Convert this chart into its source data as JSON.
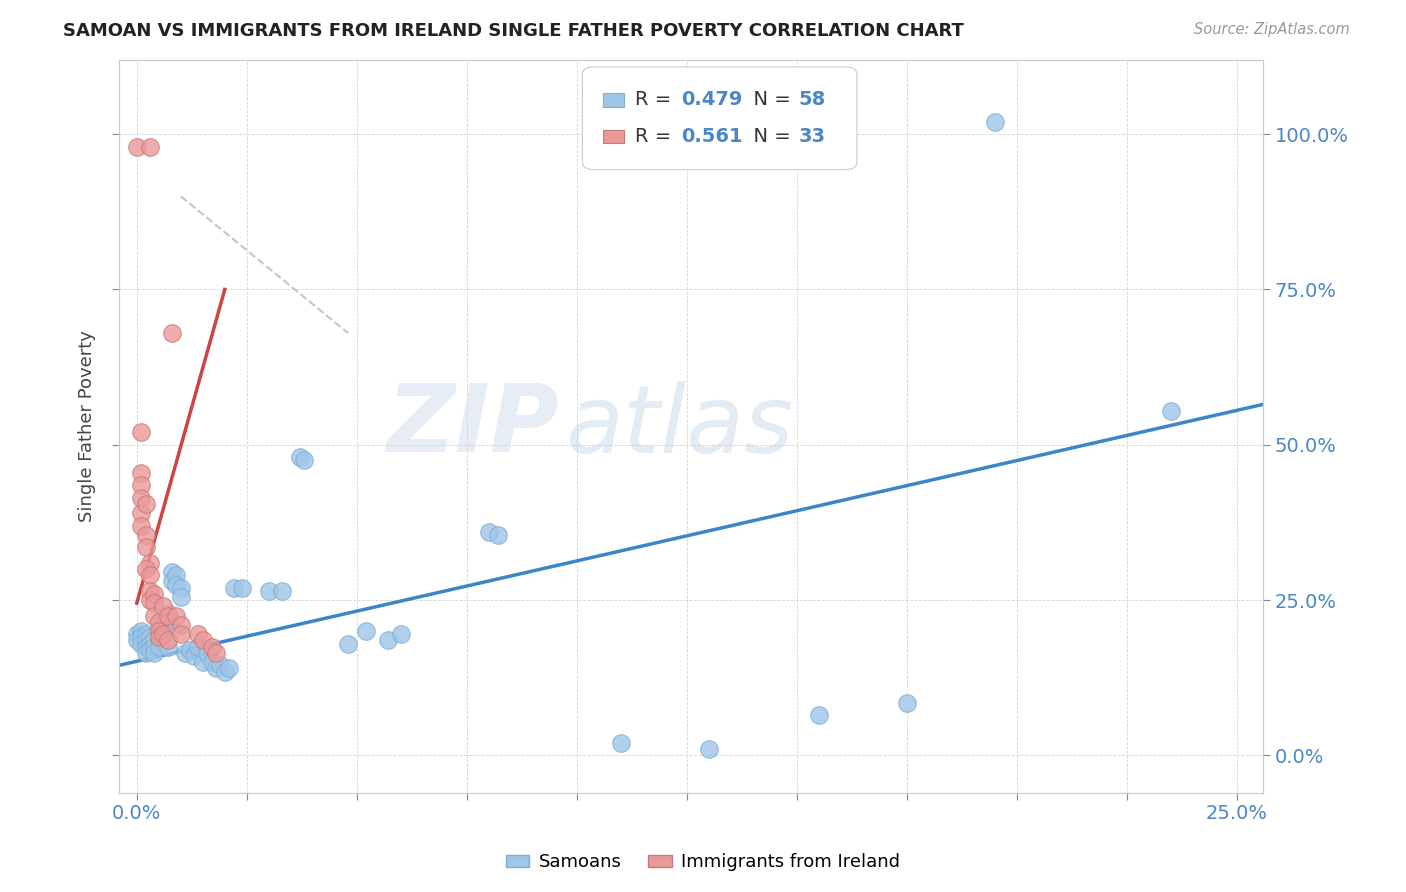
{
  "title": "SAMOAN VS IMMIGRANTS FROM IRELAND SINGLE FATHER POVERTY CORRELATION CHART",
  "source": "Source: ZipAtlas.com",
  "ylabel": "Single Father Poverty",
  "ylabel_ticks": [
    "0.0%",
    "25.0%",
    "50.0%",
    "75.0%",
    "100.0%"
  ],
  "legend_label_blue": "Samoans",
  "legend_label_pink": "Immigrants from Ireland",
  "blue_color": "#9fc5e8",
  "pink_color": "#ea9999",
  "trend_blue_color": "#3d85c8",
  "trend_pink_color": "#cc4444",
  "trend_gray_color": "#bbbbbb",
  "watermark": "ZIPatlas",
  "blue_points": [
    [
      0.0,
      0.195
    ],
    [
      0.0,
      0.185
    ],
    [
      0.001,
      0.2
    ],
    [
      0.001,
      0.19
    ],
    [
      0.001,
      0.18
    ],
    [
      0.002,
      0.195
    ],
    [
      0.002,
      0.185
    ],
    [
      0.002,
      0.175
    ],
    [
      0.002,
      0.165
    ],
    [
      0.003,
      0.19
    ],
    [
      0.003,
      0.18
    ],
    [
      0.003,
      0.17
    ],
    [
      0.004,
      0.185
    ],
    [
      0.004,
      0.175
    ],
    [
      0.004,
      0.165
    ],
    [
      0.005,
      0.2
    ],
    [
      0.005,
      0.185
    ],
    [
      0.005,
      0.175
    ],
    [
      0.006,
      0.21
    ],
    [
      0.006,
      0.195
    ],
    [
      0.007,
      0.23
    ],
    [
      0.007,
      0.215
    ],
    [
      0.007,
      0.175
    ],
    [
      0.008,
      0.295
    ],
    [
      0.008,
      0.28
    ],
    [
      0.009,
      0.29
    ],
    [
      0.009,
      0.275
    ],
    [
      0.01,
      0.27
    ],
    [
      0.01,
      0.255
    ],
    [
      0.011,
      0.165
    ],
    [
      0.012,
      0.17
    ],
    [
      0.013,
      0.16
    ],
    [
      0.014,
      0.175
    ],
    [
      0.015,
      0.15
    ],
    [
      0.016,
      0.165
    ],
    [
      0.017,
      0.15
    ],
    [
      0.018,
      0.14
    ],
    [
      0.019,
      0.145
    ],
    [
      0.02,
      0.135
    ],
    [
      0.021,
      0.14
    ],
    [
      0.022,
      0.27
    ],
    [
      0.024,
      0.27
    ],
    [
      0.03,
      0.265
    ],
    [
      0.033,
      0.265
    ],
    [
      0.037,
      0.48
    ],
    [
      0.038,
      0.475
    ],
    [
      0.052,
      0.2
    ],
    [
      0.057,
      0.185
    ],
    [
      0.08,
      0.36
    ],
    [
      0.082,
      0.355
    ],
    [
      0.11,
      0.02
    ],
    [
      0.13,
      0.01
    ],
    [
      0.155,
      0.065
    ],
    [
      0.175,
      0.085
    ],
    [
      0.195,
      1.02
    ],
    [
      0.235,
      0.555
    ],
    [
      0.06,
      0.195
    ],
    [
      0.048,
      0.18
    ]
  ],
  "pink_points": [
    [
      0.0,
      0.98
    ],
    [
      0.003,
      0.98
    ],
    [
      0.001,
      0.52
    ],
    [
      0.001,
      0.455
    ],
    [
      0.001,
      0.435
    ],
    [
      0.001,
      0.415
    ],
    [
      0.001,
      0.39
    ],
    [
      0.002,
      0.405
    ],
    [
      0.001,
      0.37
    ],
    [
      0.002,
      0.355
    ],
    [
      0.002,
      0.335
    ],
    [
      0.003,
      0.31
    ],
    [
      0.002,
      0.3
    ],
    [
      0.003,
      0.29
    ],
    [
      0.003,
      0.265
    ],
    [
      0.003,
      0.25
    ],
    [
      0.004,
      0.26
    ],
    [
      0.004,
      0.245
    ],
    [
      0.004,
      0.225
    ],
    [
      0.005,
      0.215
    ],
    [
      0.005,
      0.2
    ],
    [
      0.005,
      0.19
    ],
    [
      0.006,
      0.24
    ],
    [
      0.007,
      0.225
    ],
    [
      0.006,
      0.195
    ],
    [
      0.007,
      0.185
    ],
    [
      0.008,
      0.68
    ],
    [
      0.009,
      0.225
    ],
    [
      0.01,
      0.21
    ],
    [
      0.014,
      0.195
    ],
    [
      0.015,
      0.185
    ],
    [
      0.017,
      0.175
    ],
    [
      0.018,
      0.165
    ],
    [
      0.01,
      0.195
    ]
  ],
  "xlim": [
    -0.004,
    0.256
  ],
  "ylim": [
    -0.06,
    1.12
  ],
  "blue_line_x": [
    -0.004,
    0.256
  ],
  "blue_line_y": [
    0.145,
    0.565
  ],
  "pink_line_x": [
    0.0,
    0.02
  ],
  "pink_line_y": [
    0.245,
    0.75
  ],
  "gray_line_x": [
    0.01,
    0.048
  ],
  "gray_line_y": [
    0.9,
    0.68
  ],
  "figsize": [
    14.06,
    8.92
  ],
  "dpi": 100
}
